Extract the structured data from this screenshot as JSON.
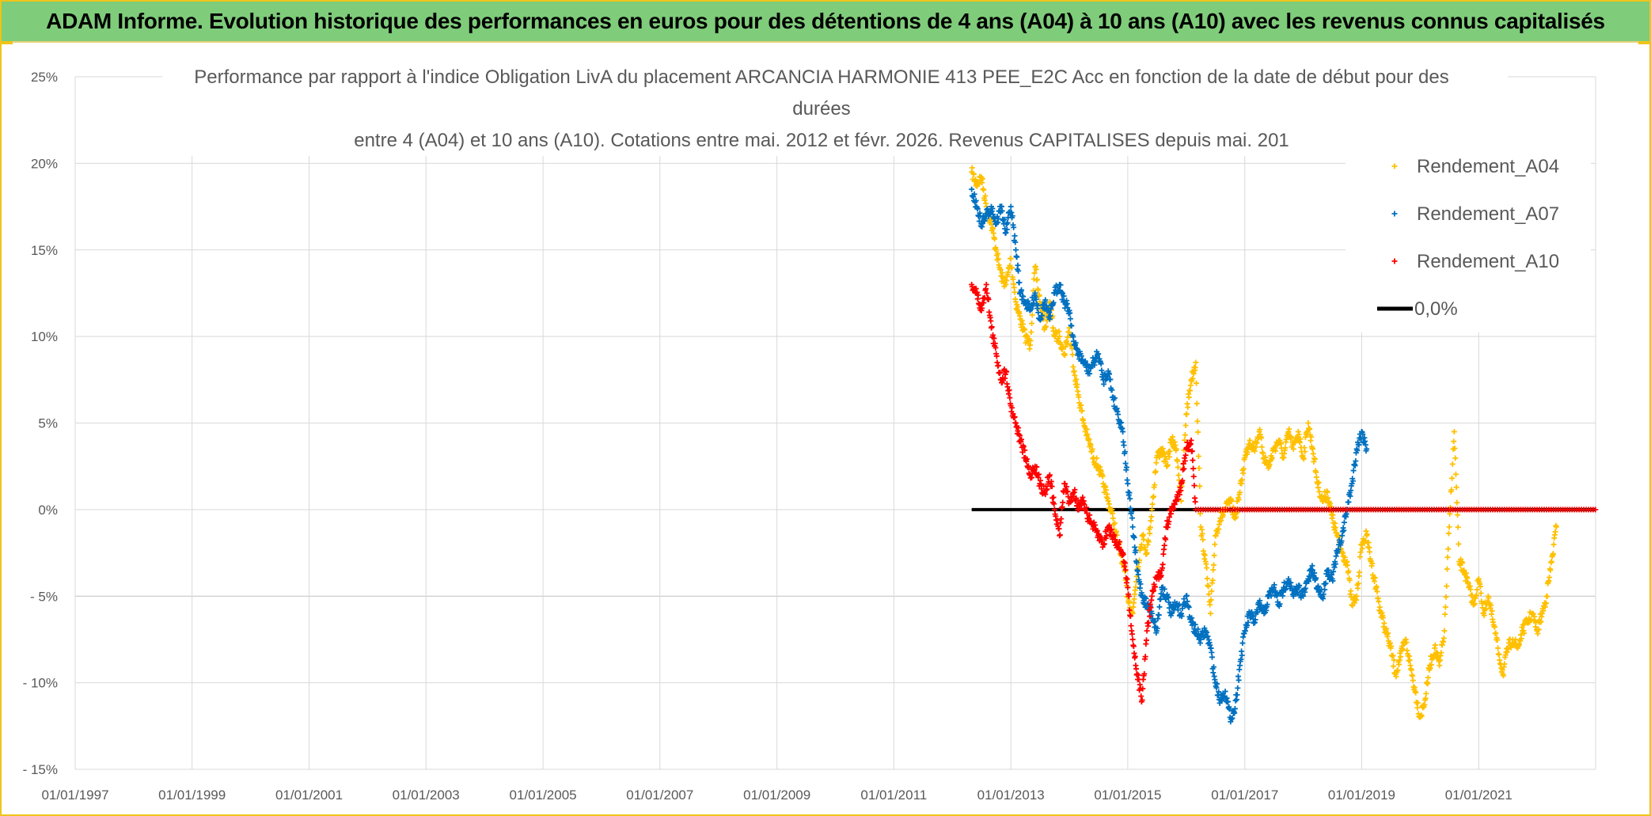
{
  "header": {
    "title": "ADAM Informe. Evolution historique des performances en euros pour des détentions de 4 ans (A04) à 10 ans (A10) avec les revenus connus capitalisés"
  },
  "colors": {
    "header_bg": "#7fcc7a",
    "frame_accent": "#f0c419",
    "A04": "#ffc000",
    "A07": "#0070c0",
    "A10": "#ff0000",
    "zero_line": "#000000"
  },
  "chart_data": {
    "type": "scatter",
    "title_lines": [
      "Performance par rapport à l'indice Obligation LivA  du placement ARCANCIA HARMONIE 413 PEE_E2C Acc en fonction de la date de début pour des",
      "durées",
      "entre 4 (A04) et 10 ans (A10). Cotations entre mai. 2012 et févr. 2026. Revenus CAPITALISES depuis mai. 201"
    ],
    "x_tick_labels": [
      "01/01/1997",
      "01/01/1999",
      "01/01/2001",
      "01/01/2003",
      "01/01/2005",
      "01/01/2007",
      "01/01/2009",
      "01/01/2011",
      "01/01/2013",
      "01/01/2015",
      "01/01/2017",
      "01/01/2019",
      "01/01/2021"
    ],
    "y_tick_labels": [
      "25%",
      "20%",
      "15%",
      "10%",
      "5%",
      "0%",
      "- 5%",
      "- 10%",
      "- 15%"
    ],
    "xlim": [
      "1997-01-01",
      "2023-01-01"
    ],
    "ylim": [
      -15,
      25
    ],
    "y_unit": "%",
    "legend_position": "top-right",
    "legend": [
      "Rendement_A04",
      "Rendement_A07",
      "Rendement_A10",
      "0,0%"
    ],
    "series": [
      {
        "name": "Rendement_A04",
        "marker": "+",
        "points": [
          [
            "2012-05-01",
            19.5
          ],
          [
            "2012-06-01",
            18.8
          ],
          [
            "2012-07-01",
            19.2
          ],
          [
            "2012-08-01",
            17.5
          ],
          [
            "2012-09-01",
            16.5
          ],
          [
            "2012-10-01",
            15.0
          ],
          [
            "2012-11-01",
            13.5
          ],
          [
            "2012-12-01",
            13.0
          ],
          [
            "2013-01-01",
            14.5
          ],
          [
            "2013-02-01",
            12.0
          ],
          [
            "2013-03-01",
            11.0
          ],
          [
            "2013-04-01",
            10.0
          ],
          [
            "2013-05-01",
            9.5
          ],
          [
            "2013-06-01",
            14.0
          ],
          [
            "2013-07-01",
            12.0
          ],
          [
            "2013-08-01",
            10.5
          ],
          [
            "2013-09-01",
            12.0
          ],
          [
            "2013-10-01",
            10.0
          ],
          [
            "2013-11-01",
            10.0
          ],
          [
            "2013-12-01",
            9.0
          ],
          [
            "2014-01-01",
            10.5
          ],
          [
            "2014-02-01",
            8.0
          ],
          [
            "2014-03-01",
            6.5
          ],
          [
            "2014-04-01",
            5.0
          ],
          [
            "2014-05-01",
            4.0
          ],
          [
            "2014-06-01",
            3.0
          ],
          [
            "2014-07-01",
            2.5
          ],
          [
            "2014-08-01",
            1.5
          ],
          [
            "2014-09-01",
            0.5
          ],
          [
            "2014-10-01",
            -0.5
          ],
          [
            "2014-11-01",
            -2.0
          ],
          [
            "2014-12-01",
            -3.0
          ],
          [
            "2015-01-01",
            -5.0
          ],
          [
            "2015-02-01",
            -6.0
          ],
          [
            "2015-03-01",
            -3.5
          ],
          [
            "2015-04-01",
            -1.5
          ],
          [
            "2015-05-01",
            -2.5
          ],
          [
            "2015-06-01",
            0.0
          ],
          [
            "2015-07-01",
            3.0
          ],
          [
            "2015-08-01",
            3.5
          ],
          [
            "2015-09-01",
            2.5
          ],
          [
            "2015-10-01",
            4.0
          ],
          [
            "2015-11-01",
            3.5
          ],
          [
            "2015-12-01",
            0.5
          ],
          [
            "2016-01-01",
            5.5
          ],
          [
            "2016-02-01",
            7.5
          ],
          [
            "2016-03-01",
            8.5
          ],
          [
            "2016-04-01",
            -1.0
          ],
          [
            "2016-05-01",
            -3.0
          ],
          [
            "2016-06-01",
            -6.0
          ],
          [
            "2016-07-01",
            -1.5
          ],
          [
            "2016-08-01",
            -0.5
          ],
          [
            "2016-09-01",
            0.0
          ],
          [
            "2016-10-01",
            0.5
          ],
          [
            "2016-11-01",
            -0.5
          ],
          [
            "2016-12-01",
            1.0
          ],
          [
            "2017-01-01",
            3.0
          ],
          [
            "2017-02-01",
            4.0
          ],
          [
            "2017-03-01",
            3.5
          ],
          [
            "2017-04-01",
            4.5
          ],
          [
            "2017-05-01",
            3.0
          ],
          [
            "2017-06-01",
            2.5
          ],
          [
            "2017-07-01",
            3.5
          ],
          [
            "2017-08-01",
            4.0
          ],
          [
            "2017-09-01",
            3.0
          ],
          [
            "2017-10-01",
            4.5
          ],
          [
            "2017-11-01",
            3.5
          ],
          [
            "2017-12-01",
            4.5
          ],
          [
            "2018-01-01",
            3.0
          ],
          [
            "2018-02-01",
            5.0
          ],
          [
            "2018-03-01",
            3.5
          ],
          [
            "2018-04-01",
            1.5
          ],
          [
            "2018-05-01",
            0.5
          ],
          [
            "2018-06-01",
            1.0
          ],
          [
            "2018-07-01",
            -0.5
          ],
          [
            "2018-08-01",
            -1.5
          ],
          [
            "2018-09-01",
            -2.5
          ],
          [
            "2018-10-01",
            -3.0
          ],
          [
            "2018-11-01",
            -5.5
          ],
          [
            "2018-12-01",
            -5.0
          ],
          [
            "2019-01-01",
            -2.0
          ],
          [
            "2019-02-01",
            -1.5
          ],
          [
            "2019-03-01",
            -3.0
          ],
          [
            "2019-04-01",
            -4.5
          ],
          [
            "2019-05-01",
            -6.0
          ],
          [
            "2019-06-01",
            -7.0
          ],
          [
            "2019-07-01",
            -8.0
          ],
          [
            "2019-08-01",
            -9.5
          ],
          [
            "2019-09-01",
            -8.5
          ],
          [
            "2019-10-01",
            -7.5
          ],
          [
            "2019-11-01",
            -9.0
          ],
          [
            "2019-12-01",
            -10.5
          ],
          [
            "2020-01-01",
            -12.0
          ],
          [
            "2020-02-01",
            -11.0
          ],
          [
            "2020-03-01",
            -9.0
          ],
          [
            "2020-04-01",
            -8.0
          ],
          [
            "2020-05-01",
            -9.0
          ],
          [
            "2020-06-01",
            -7.0
          ],
          [
            "2020-07-01",
            -1.0
          ],
          [
            "2020-08-01",
            4.5
          ],
          [
            "2020-09-01",
            -3.0
          ],
          [
            "2020-10-01",
            -3.5
          ],
          [
            "2020-11-01",
            -4.5
          ],
          [
            "2020-12-01",
            -5.5
          ],
          [
            "2021-01-01",
            -4.0
          ],
          [
            "2021-02-01",
            -6.0
          ],
          [
            "2021-03-01",
            -5.0
          ],
          [
            "2021-04-01",
            -6.5
          ],
          [
            "2021-05-01",
            -8.0
          ],
          [
            "2021-06-01",
            -9.5
          ],
          [
            "2021-07-01",
            -8.0
          ],
          [
            "2021-08-01",
            -7.5
          ],
          [
            "2021-09-01",
            -8.0
          ],
          [
            "2021-10-01",
            -7.0
          ],
          [
            "2021-11-01",
            -6.5
          ],
          [
            "2021-12-01",
            -6.0
          ],
          [
            "2022-01-01",
            -7.0
          ],
          [
            "2022-02-01",
            -6.0
          ],
          [
            "2022-03-01",
            -5.0
          ],
          [
            "2022-04-01",
            -3.0
          ],
          [
            "2022-05-01",
            -1.0
          ]
        ]
      },
      {
        "name": "Rendement_A07",
        "marker": "+",
        "points": [
          [
            "2012-05-01",
            18.5
          ],
          [
            "2012-06-01",
            17.5
          ],
          [
            "2012-07-01",
            16.5
          ],
          [
            "2012-08-01",
            17.0
          ],
          [
            "2012-09-01",
            17.5
          ],
          [
            "2012-10-01",
            16.5
          ],
          [
            "2012-11-01",
            17.5
          ],
          [
            "2012-12-01",
            16.0
          ],
          [
            "2013-01-01",
            17.5
          ],
          [
            "2013-02-01",
            15.0
          ],
          [
            "2013-03-01",
            12.5
          ],
          [
            "2013-04-01",
            12.0
          ],
          [
            "2013-05-01",
            11.5
          ],
          [
            "2013-06-01",
            12.5
          ],
          [
            "2013-07-01",
            11.0
          ],
          [
            "2013-08-01",
            12.0
          ],
          [
            "2013-09-01",
            11.0
          ],
          [
            "2013-10-01",
            12.5
          ],
          [
            "2013-11-01",
            13.0
          ],
          [
            "2013-12-01",
            12.0
          ],
          [
            "2014-01-01",
            11.5
          ],
          [
            "2014-02-01",
            9.5
          ],
          [
            "2014-03-01",
            9.0
          ],
          [
            "2014-04-01",
            8.5
          ],
          [
            "2014-05-01",
            8.0
          ],
          [
            "2014-06-01",
            8.5
          ],
          [
            "2014-07-01",
            9.0
          ],
          [
            "2014-08-01",
            7.5
          ],
          [
            "2014-09-01",
            8.0
          ],
          [
            "2014-10-01",
            6.5
          ],
          [
            "2014-11-01",
            5.5
          ],
          [
            "2014-12-01",
            4.5
          ],
          [
            "2015-01-01",
            1.5
          ],
          [
            "2015-02-01",
            -1.0
          ],
          [
            "2015-03-01",
            -3.5
          ],
          [
            "2015-04-01",
            -5.0
          ],
          [
            "2015-05-01",
            -5.5
          ],
          [
            "2015-06-01",
            -6.0
          ],
          [
            "2015-07-01",
            -7.0
          ],
          [
            "2015-08-01",
            -4.5
          ],
          [
            "2015-09-01",
            -5.0
          ],
          [
            "2015-10-01",
            -6.0
          ],
          [
            "2015-11-01",
            -5.5
          ],
          [
            "2015-12-01",
            -6.0
          ],
          [
            "2016-01-01",
            -5.0
          ],
          [
            "2016-02-01",
            -6.5
          ],
          [
            "2016-03-01",
            -7.0
          ],
          [
            "2016-04-01",
            -7.5
          ],
          [
            "2016-05-01",
            -7.0
          ],
          [
            "2016-06-01",
            -8.0
          ],
          [
            "2016-07-01",
            -10.0
          ],
          [
            "2016-08-01",
            -11.0
          ],
          [
            "2016-09-01",
            -10.5
          ],
          [
            "2016-10-01",
            -12.0
          ],
          [
            "2016-11-01",
            -11.5
          ],
          [
            "2016-12-01",
            -9.0
          ],
          [
            "2017-01-01",
            -7.0
          ],
          [
            "2017-02-01",
            -6.0
          ],
          [
            "2017-03-01",
            -6.5
          ],
          [
            "2017-04-01",
            -5.5
          ],
          [
            "2017-05-01",
            -6.0
          ],
          [
            "2017-06-01",
            -5.0
          ],
          [
            "2017-07-01",
            -4.5
          ],
          [
            "2017-08-01",
            -5.5
          ],
          [
            "2017-09-01",
            -4.5
          ],
          [
            "2017-10-01",
            -4.0
          ],
          [
            "2017-11-01",
            -5.0
          ],
          [
            "2017-12-01",
            -4.5
          ],
          [
            "2018-01-01",
            -5.0
          ],
          [
            "2018-02-01",
            -4.0
          ],
          [
            "2018-03-01",
            -3.5
          ],
          [
            "2018-04-01",
            -4.5
          ],
          [
            "2018-05-01",
            -5.0
          ],
          [
            "2018-06-01",
            -3.5
          ],
          [
            "2018-07-01",
            -4.0
          ],
          [
            "2018-08-01",
            -2.5
          ],
          [
            "2018-09-01",
            -1.5
          ],
          [
            "2018-10-01",
            0.0
          ],
          [
            "2018-11-01",
            1.5
          ],
          [
            "2018-12-01",
            3.5
          ],
          [
            "2019-01-01",
            4.5
          ],
          [
            "2019-02-01",
            3.5
          ]
        ]
      },
      {
        "name": "Rendement_A10",
        "marker": "+",
        "points": [
          [
            "2012-05-01",
            13.0
          ],
          [
            "2012-06-01",
            12.5
          ],
          [
            "2012-07-01",
            11.5
          ],
          [
            "2012-08-01",
            13.0
          ],
          [
            "2012-09-01",
            10.5
          ],
          [
            "2012-10-01",
            9.0
          ],
          [
            "2012-11-01",
            7.5
          ],
          [
            "2012-12-01",
            8.0
          ],
          [
            "2013-01-01",
            6.0
          ],
          [
            "2013-02-01",
            5.0
          ],
          [
            "2013-03-01",
            4.0
          ],
          [
            "2013-04-01",
            3.0
          ],
          [
            "2013-05-01",
            2.0
          ],
          [
            "2013-06-01",
            2.5
          ],
          [
            "2013-07-01",
            1.5
          ],
          [
            "2013-08-01",
            1.0
          ],
          [
            "2013-09-01",
            2.0
          ],
          [
            "2013-10-01",
            0.0
          ],
          [
            "2013-11-01",
            -1.5
          ],
          [
            "2013-12-01",
            1.5
          ],
          [
            "2014-01-01",
            0.5
          ],
          [
            "2014-02-01",
            1.0
          ],
          [
            "2014-03-01",
            0.0
          ],
          [
            "2014-04-01",
            0.5
          ],
          [
            "2014-05-01",
            -0.5
          ],
          [
            "2014-06-01",
            -1.0
          ],
          [
            "2014-07-01",
            -1.5
          ],
          [
            "2014-08-01",
            -2.0
          ],
          [
            "2014-09-01",
            -1.0
          ],
          [
            "2014-10-01",
            -1.5
          ],
          [
            "2014-11-01",
            -2.0
          ],
          [
            "2014-12-01",
            -2.5
          ],
          [
            "2015-01-01",
            -4.5
          ],
          [
            "2015-02-01",
            -7.5
          ],
          [
            "2015-03-01",
            -9.5
          ],
          [
            "2015-04-01",
            -11.0
          ],
          [
            "2015-05-01",
            -7.0
          ],
          [
            "2015-06-01",
            -5.0
          ],
          [
            "2015-07-01",
            -4.0
          ],
          [
            "2015-08-01",
            -3.5
          ],
          [
            "2015-09-01",
            -1.0
          ],
          [
            "2015-10-01",
            0.0
          ],
          [
            "2015-11-01",
            0.5
          ],
          [
            "2015-12-01",
            1.5
          ],
          [
            "2016-01-01",
            3.5
          ],
          [
            "2016-02-01",
            4.0
          ],
          [
            "2016-03-01",
            0.0
          ],
          [
            "2016-06-01",
            0.0
          ],
          [
            "2017-01-01",
            0.0
          ],
          [
            "2018-01-01",
            0.0
          ],
          [
            "2019-01-01",
            0.0
          ],
          [
            "2020-01-01",
            0.0
          ],
          [
            "2021-01-01",
            0.0
          ],
          [
            "2022-01-01",
            0.0
          ],
          [
            "2022-12-31",
            0.0
          ]
        ]
      },
      {
        "name": "0,0%",
        "marker": "line",
        "points": [
          [
            "2012-05-01",
            0.0
          ],
          [
            "2022-12-31",
            0.0
          ]
        ]
      }
    ]
  }
}
